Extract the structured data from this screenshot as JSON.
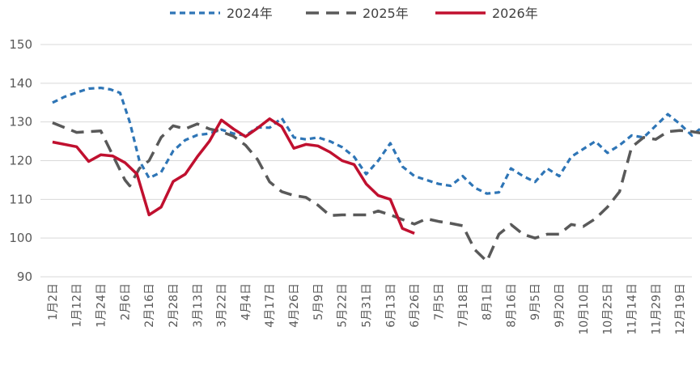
{
  "chart_data": {
    "type": "line",
    "title": "",
    "xlabel": "",
    "ylabel": "",
    "ylim": [
      90,
      150
    ],
    "yticks": [
      90,
      100,
      110,
      120,
      130,
      140,
      150
    ],
    "grid": "horizontal",
    "legend_position": "top",
    "categories": [
      "1月2日",
      "1月12日",
      "1月24日",
      "2月6日",
      "2月16日",
      "2月28日",
      "3月13日",
      "3月22日",
      "4月4日",
      "4月17日",
      "4月26日",
      "5月9日",
      "5月22日",
      "5月31日",
      "6月13日",
      "6月26日",
      "7月5日",
      "7月18日",
      "8月1日",
      "8月16日",
      "9月5日",
      "9月20日",
      "10月10日",
      "10月25日",
      "11月14日",
      "11月29日",
      "12月19日"
    ],
    "series": [
      {
        "name": "2024年",
        "color": "#2E75B6",
        "dash": "dashed-short",
        "points": [
          [
            0,
            135
          ],
          [
            0.5,
            136.5
          ],
          [
            1,
            137.6
          ],
          [
            1.5,
            138.6
          ],
          [
            2,
            138.8
          ],
          [
            2.4,
            138.4
          ],
          [
            2.8,
            137.5
          ],
          [
            3.2,
            130
          ],
          [
            3.6,
            120
          ],
          [
            4,
            115.5
          ],
          [
            4.5,
            117
          ],
          [
            5,
            122.5
          ],
          [
            5.5,
            125.3
          ],
          [
            6,
            126.6
          ],
          [
            6.5,
            127
          ],
          [
            7,
            128
          ],
          [
            7.5,
            127
          ],
          [
            8,
            126.5
          ],
          [
            8.5,
            128.6
          ],
          [
            9,
            128.5
          ],
          [
            9.5,
            131
          ],
          [
            10,
            126
          ],
          [
            10.5,
            125.5
          ],
          [
            11,
            126
          ],
          [
            11.5,
            125
          ],
          [
            12,
            123.5
          ],
          [
            12.5,
            121
          ],
          [
            13,
            116.5
          ],
          [
            13.5,
            120
          ],
          [
            14,
            124.5
          ],
          [
            14.5,
            118.5
          ],
          [
            15,
            116
          ],
          [
            15.5,
            115
          ],
          [
            16,
            114
          ],
          [
            16.5,
            113.5
          ],
          [
            17,
            116
          ],
          [
            17.5,
            113
          ],
          [
            18,
            111.5
          ],
          [
            18.5,
            111.8
          ],
          [
            19,
            118
          ],
          [
            19.5,
            116
          ],
          [
            20,
            114.5
          ],
          [
            20.5,
            118
          ],
          [
            21,
            116
          ],
          [
            21.5,
            121
          ],
          [
            22,
            123
          ],
          [
            22.5,
            125
          ],
          [
            23,
            122
          ],
          [
            23.5,
            124
          ],
          [
            24,
            126.5
          ],
          [
            24.5,
            126
          ],
          [
            25,
            129
          ],
          [
            25.5,
            132
          ],
          [
            26,
            129.5
          ],
          [
            26.5,
            126.5
          ],
          [
            27,
            129
          ]
        ]
      },
      {
        "name": "2025年",
        "color": "#595959",
        "dash": "dashed-long",
        "points": [
          [
            0,
            129.8
          ],
          [
            1,
            127.3
          ],
          [
            2,
            127.7
          ],
          [
            3,
            115
          ],
          [
            3.2,
            113.5
          ],
          [
            3.6,
            118
          ],
          [
            4,
            120
          ],
          [
            4.5,
            126
          ],
          [
            5,
            129
          ],
          [
            5.5,
            128.2
          ],
          [
            6,
            129.5
          ],
          [
            6.5,
            128.2
          ],
          [
            7,
            127.5
          ],
          [
            7.5,
            126.3
          ],
          [
            8,
            124
          ],
          [
            8.5,
            120.3
          ],
          [
            9,
            114.5
          ],
          [
            9.5,
            112
          ],
          [
            10,
            111
          ],
          [
            10.5,
            110.5
          ],
          [
            11,
            108.5
          ],
          [
            11.5,
            105.8
          ],
          [
            12,
            106
          ],
          [
            12.5,
            106
          ],
          [
            13,
            106
          ],
          [
            13.5,
            107
          ],
          [
            14,
            106
          ],
          [
            14.5,
            104.8
          ],
          [
            15,
            103.6
          ],
          [
            15.5,
            105
          ],
          [
            16,
            104.3
          ],
          [
            16.5,
            103.8
          ],
          [
            17,
            103.2
          ],
          [
            17.5,
            97
          ],
          [
            18,
            94
          ],
          [
            18.5,
            101
          ],
          [
            19,
            103.5
          ],
          [
            19.5,
            101
          ],
          [
            20,
            100
          ],
          [
            20.5,
            101
          ],
          [
            21,
            101
          ],
          [
            21.5,
            103.5
          ],
          [
            22,
            103
          ],
          [
            22.5,
            105
          ],
          [
            23,
            108
          ],
          [
            23.5,
            112
          ],
          [
            24,
            123.5
          ],
          [
            24.5,
            126
          ],
          [
            25,
            125.5
          ],
          [
            25.5,
            127.5
          ],
          [
            26,
            127.8
          ],
          [
            26.5,
            127.5
          ],
          [
            27,
            127
          ]
        ]
      },
      {
        "name": "2026年",
        "color": "#C0102F",
        "dash": "solid",
        "points": [
          [
            0,
            124.8
          ],
          [
            1,
            123.6
          ],
          [
            1.5,
            119.8
          ],
          [
            2,
            121.5
          ],
          [
            2.5,
            121.2
          ],
          [
            3,
            119.5
          ],
          [
            3.5,
            116.5
          ],
          [
            4,
            106
          ],
          [
            4.5,
            108
          ],
          [
            5,
            114.6
          ],
          [
            5.5,
            116.5
          ],
          [
            6,
            121
          ],
          [
            6.5,
            125
          ],
          [
            7,
            130.5
          ],
          [
            7.5,
            128.2
          ],
          [
            8,
            126.2
          ],
          [
            8.5,
            128.4
          ],
          [
            9,
            130.8
          ],
          [
            9.5,
            128.8
          ],
          [
            10,
            123.2
          ],
          [
            10.5,
            124.2
          ],
          [
            11,
            123.8
          ],
          [
            11.5,
            122.2
          ],
          [
            12,
            120
          ],
          [
            12.5,
            119
          ],
          [
            13,
            114
          ],
          [
            13.5,
            111
          ],
          [
            14,
            110
          ],
          [
            14.5,
            102.5
          ],
          [
            15,
            101.2
          ]
        ]
      }
    ]
  }
}
